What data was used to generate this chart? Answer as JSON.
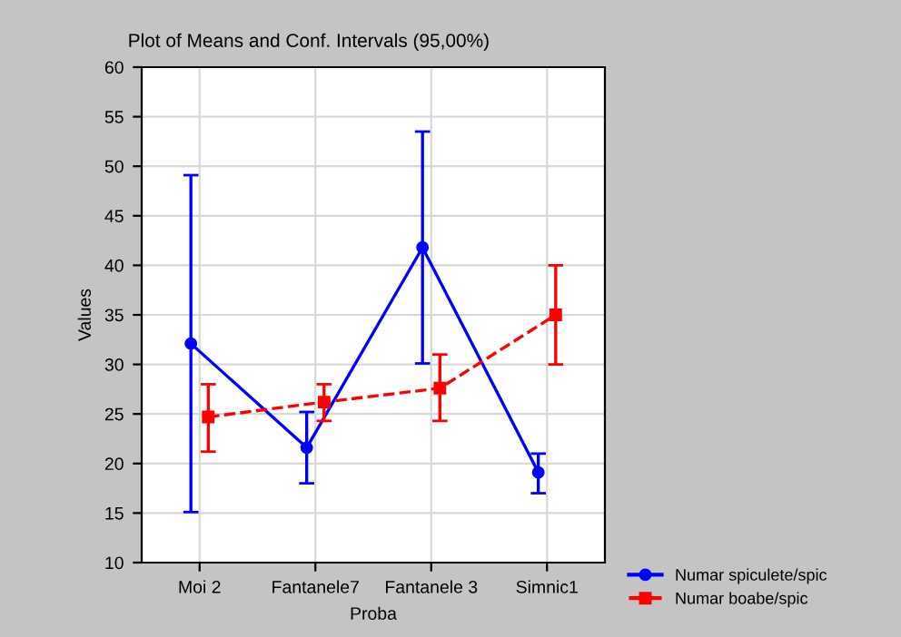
{
  "chart_data": {
    "type": "line",
    "title": "Plot of Means and Conf. Intervals (95,00%)",
    "xlabel": "Proba",
    "ylabel": "Values",
    "categories": [
      "Moi 2",
      "Fantanele7",
      "Fantanele 3",
      "Simnic1"
    ],
    "series": [
      {
        "name": "Numar spiculete/spic",
        "color": "#0000ff",
        "marker": "circle",
        "line_style": "solid",
        "values": [
          32.1,
          21.6,
          41.8,
          19.1
        ],
        "errors": [
          [
            15.1,
            49.1
          ],
          [
            18.0,
            25.2
          ],
          [
            30.1,
            53.5
          ],
          [
            17.0,
            21.0
          ]
        ]
      },
      {
        "name": "Numar boabe/spic",
        "color": "#ff0000",
        "marker": "square",
        "line_style": "dashed",
        "values": [
          24.7,
          26.2,
          27.6,
          35.0
        ],
        "errors": [
          [
            21.2,
            28.0
          ],
          [
            24.3,
            28.0
          ],
          [
            24.3,
            31.0
          ],
          [
            30.0,
            40.0
          ]
        ]
      }
    ],
    "ylim": [
      10,
      60
    ],
    "yticks": [
      10,
      15,
      20,
      25,
      30,
      35,
      40,
      45,
      50,
      55,
      60
    ],
    "grid": true,
    "legend": "bottom right"
  }
}
